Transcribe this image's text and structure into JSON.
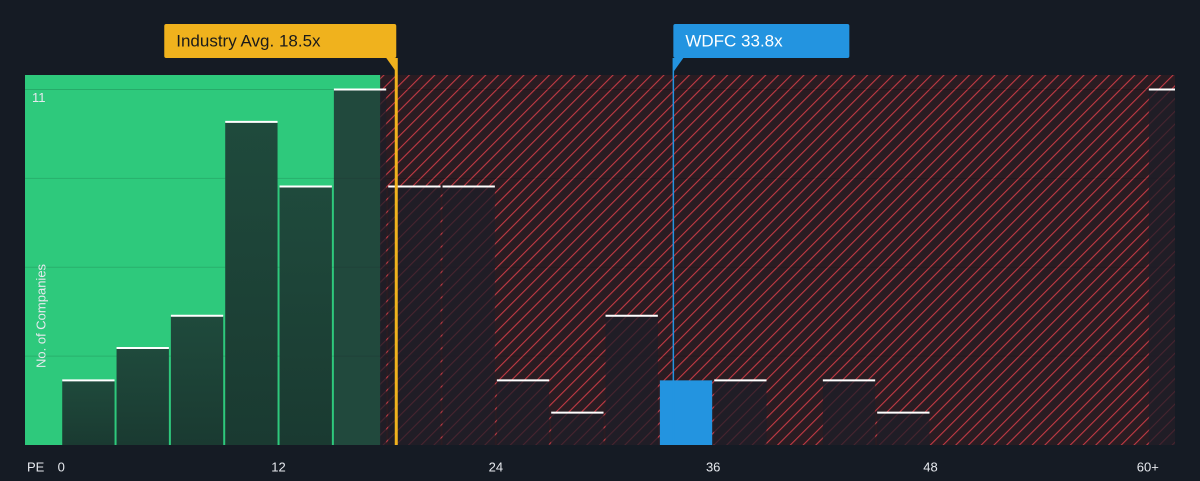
{
  "chart_data": {
    "type": "histogram",
    "bins": [
      0,
      3,
      6,
      9,
      12,
      15,
      18,
      21,
      24,
      27,
      30,
      33,
      36,
      39,
      42,
      45,
      48,
      51,
      54,
      57,
      60,
      63
    ],
    "counts": [
      2,
      3,
      4,
      10,
      8,
      11,
      8,
      8,
      2,
      1,
      4,
      2,
      2,
      0,
      2,
      1,
      0,
      0,
      0,
      0,
      11
    ],
    "highlight_bin": 11,
    "xlim": [
      -2,
      61.5
    ],
    "ylim": [
      0,
      11.45
    ],
    "xticks": [
      0,
      12,
      24,
      36,
      48,
      {
        "value": 60,
        "label": "60+"
      }
    ],
    "yticks": [
      11
    ],
    "xlabel": "PE",
    "ylabel": "No. of Companies",
    "annotations": [
      {
        "text": "Industry Avg. 18.5x",
        "x": 18.5,
        "color": "#f0b21d"
      },
      {
        "text": "WDFC 33.8x",
        "x": 33.8,
        "color": "#2394e0"
      }
    ]
  }
}
